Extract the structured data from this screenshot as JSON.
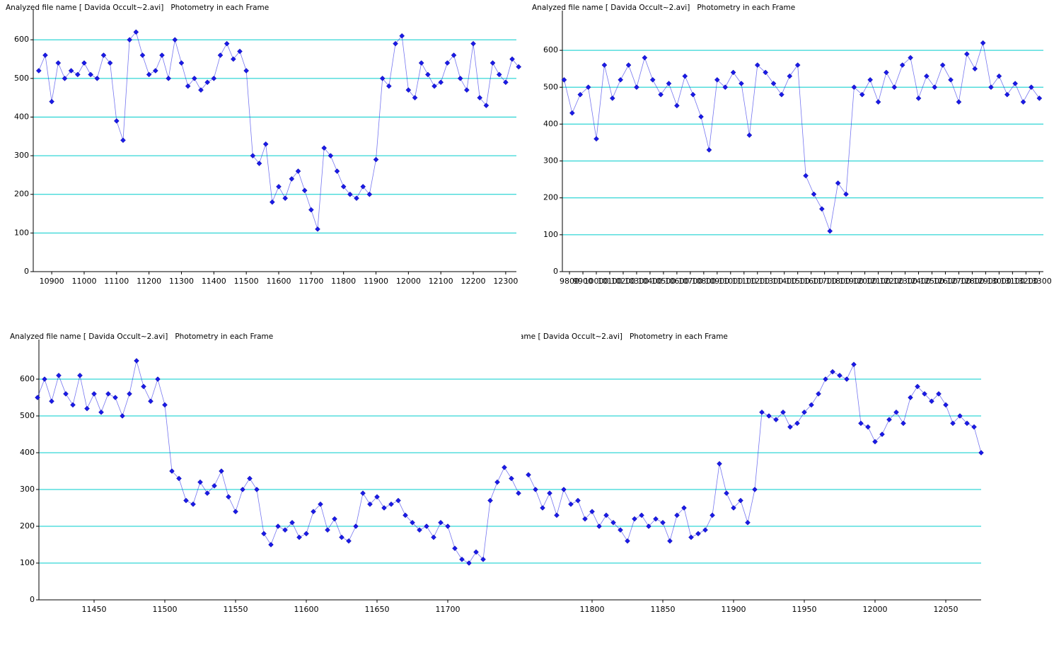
{
  "chart_data": [
    {
      "type": "line",
      "title": "Analyzed file name [ Davida Occult~2.avi]   Photometry in each Frame",
      "xlim": [
        10843,
        12333
      ],
      "ylim": [
        0,
        670
      ],
      "xticks": [
        10900,
        11000,
        11100,
        11200,
        11300,
        11400,
        11500,
        11600,
        11700,
        11800,
        11900,
        12000,
        12100,
        12200,
        12300
      ],
      "yticks": [
        0,
        100,
        200,
        300,
        400,
        500,
        600
      ],
      "grid": true,
      "grid_color": "#00cccc",
      "ytick_labels": true,
      "x": [
        10860,
        10880,
        10900,
        10920,
        10940,
        10960,
        10980,
        11000,
        11020,
        11040,
        11060,
        11080,
        11100,
        11120,
        11140,
        11160,
        11180,
        11200,
        11220,
        11240,
        11260,
        11280,
        11300,
        11320,
        11340,
        11360,
        11380,
        11400,
        11420,
        11440,
        11460,
        11480,
        11500,
        11520,
        11540,
        11560,
        11580,
        11600,
        11620,
        11640,
        11660,
        11680,
        11700,
        11720,
        11740,
        11760,
        11780,
        11800,
        11820,
        11840,
        11860,
        11880,
        11900,
        11920,
        11940,
        11960,
        11980,
        12000,
        12020,
        12040,
        12060,
        12080,
        12100,
        12120,
        12140,
        12160,
        12180,
        12200,
        12220,
        12240,
        12260,
        12280,
        12300,
        12320,
        12340
      ],
      "series": [
        {
          "name": "Photometry",
          "color": "#1a1ae6",
          "values": [
            520,
            560,
            440,
            540,
            500,
            520,
            510,
            540,
            510,
            500,
            560,
            540,
            390,
            340,
            600,
            620,
            560,
            510,
            520,
            560,
            500,
            600,
            540,
            480,
            500,
            470,
            490,
            500,
            560,
            590,
            550,
            570,
            520,
            300,
            280,
            330,
            180,
            220,
            190,
            240,
            260,
            210,
            160,
            110,
            320,
            300,
            260,
            220,
            200,
            190,
            220,
            200,
            290,
            500,
            480,
            590,
            610,
            470,
            450,
            540,
            510,
            480,
            490,
            540,
            560,
            500,
            470,
            590,
            450,
            430,
            540,
            510,
            490,
            550,
            530
          ]
        }
      ]
    },
    {
      "type": "line",
      "title": "Analyzed file name [ Davida Occult~2.avi]   Photometry in each Frame",
      "xlim": [
        9747,
        13330
      ],
      "ylim": [
        0,
        700
      ],
      "xticks": [
        9800,
        9900,
        10000,
        10100,
        10200,
        10300,
        10400,
        10500,
        10600,
        10700,
        10800,
        10900,
        11000,
        11100,
        11200,
        11300,
        11400,
        11500,
        11600,
        11700,
        11800,
        11900,
        12000,
        12100,
        12200,
        12300,
        12400,
        12500,
        12600,
        12700,
        12800,
        12900,
        13000,
        13100,
        13200,
        13300
      ],
      "yticks": [
        0,
        100,
        200,
        300,
        400,
        500,
        600
      ],
      "grid": true,
      "grid_color": "#00cccc",
      "ytick_labels": true,
      "x": [
        9760,
        9820,
        9880,
        9940,
        10000,
        10060,
        10120,
        10180,
        10240,
        10300,
        10360,
        10420,
        10480,
        10540,
        10600,
        10660,
        10720,
        10780,
        10840,
        10900,
        10960,
        11020,
        11080,
        11140,
        11200,
        11260,
        11320,
        11380,
        11440,
        11500,
        11560,
        11620,
        11680,
        11740,
        11800,
        11860,
        11920,
        11980,
        12040,
        12100,
        12160,
        12220,
        12280,
        12340,
        12400,
        12460,
        12520,
        12580,
        12640,
        12700,
        12760,
        12820,
        12880,
        12940,
        13000,
        13060,
        13120,
        13180,
        13240,
        13300
      ],
      "series": [
        {
          "name": "Photometry",
          "color": "#1a1ae6",
          "values": [
            520,
            430,
            480,
            500,
            360,
            560,
            470,
            520,
            560,
            500,
            580,
            520,
            480,
            510,
            450,
            530,
            480,
            420,
            330,
            520,
            500,
            540,
            510,
            370,
            560,
            540,
            510,
            480,
            530,
            560,
            260,
            210,
            170,
            110,
            240,
            210,
            500,
            480,
            520,
            460,
            540,
            500,
            560,
            580,
            470,
            530,
            500,
            560,
            520,
            460,
            590,
            550,
            620,
            500,
            530,
            480,
            510,
            460,
            500,
            470
          ]
        }
      ]
    },
    {
      "type": "line",
      "title": "Analyzed file name [ Davida Occult~2.avi]   Photometry in each Frame",
      "xlim": [
        11411,
        11752
      ],
      "ylim": [
        0,
        700
      ],
      "xticks": [
        11450,
        11500,
        11550,
        11600,
        11650,
        11700
      ],
      "yticks": [
        0,
        100,
        200,
        300,
        400,
        500,
        600
      ],
      "grid": true,
      "grid_color": "#00cccc",
      "ytick_labels": true,
      "x": [
        11410,
        11415,
        11420,
        11425,
        11430,
        11435,
        11440,
        11445,
        11450,
        11455,
        11460,
        11465,
        11470,
        11475,
        11480,
        11485,
        11490,
        11495,
        11500,
        11505,
        11510,
        11515,
        11520,
        11525,
        11530,
        11535,
        11540,
        11545,
        11550,
        11555,
        11560,
        11565,
        11570,
        11575,
        11580,
        11585,
        11590,
        11595,
        11600,
        11605,
        11610,
        11615,
        11620,
        11625,
        11630,
        11635,
        11640,
        11645,
        11650,
        11655,
        11660,
        11665,
        11670,
        11675,
        11680,
        11685,
        11690,
        11695,
        11700,
        11705,
        11710,
        11715,
        11720,
        11725,
        11730,
        11735,
        11740,
        11745,
        11750
      ],
      "series": [
        {
          "name": "Photometry",
          "color": "#1a1ae6",
          "values": [
            550,
            600,
            540,
            610,
            560,
            530,
            610,
            520,
            560,
            510,
            560,
            550,
            500,
            560,
            650,
            580,
            540,
            600,
            530,
            350,
            330,
            270,
            260,
            320,
            290,
            310,
            350,
            280,
            240,
            300,
            330,
            300,
            180,
            150,
            200,
            190,
            210,
            170,
            180,
            240,
            260,
            190,
            220,
            170,
            160,
            200,
            290,
            260,
            280,
            250,
            260,
            270,
            230,
            210,
            190,
            200,
            170,
            210,
            200,
            140,
            110,
            100,
            130,
            110,
            270,
            320,
            360,
            330,
            290
          ]
        }
      ]
    },
    {
      "type": "line",
      "title": "ame [ Davida Occult~2.avi]   Photometry in each Frame",
      "xlim": [
        11750,
        12075
      ],
      "ylim": [
        0,
        700
      ],
      "xticks": [
        11800,
        11850,
        11900,
        11950,
        12000,
        12050
      ],
      "yticks": [
        0,
        100,
        200,
        300,
        400,
        500,
        600
      ],
      "grid": true,
      "grid_color": "#00cccc",
      "ytick_labels": false,
      "x": [
        11755,
        11760,
        11765,
        11770,
        11775,
        11780,
        11785,
        11790,
        11795,
        11800,
        11805,
        11810,
        11815,
        11820,
        11825,
        11830,
        11835,
        11840,
        11845,
        11850,
        11855,
        11860,
        11865,
        11870,
        11875,
        11880,
        11885,
        11890,
        11895,
        11900,
        11905,
        11910,
        11915,
        11920,
        11925,
        11930,
        11935,
        11940,
        11945,
        11950,
        11955,
        11960,
        11965,
        11970,
        11975,
        11980,
        11985,
        11990,
        11995,
        12000,
        12005,
        12010,
        12015,
        12020,
        12025,
        12030,
        12035,
        12040,
        12045,
        12050,
        12055,
        12060,
        12065,
        12070,
        12075
      ],
      "series": [
        {
          "name": "Photometry",
          "color": "#1a1ae6",
          "values": [
            340,
            300,
            250,
            290,
            230,
            300,
            260,
            270,
            220,
            240,
            200,
            230,
            210,
            190,
            160,
            220,
            230,
            200,
            220,
            210,
            160,
            230,
            250,
            170,
            180,
            190,
            230,
            370,
            290,
            250,
            270,
            210,
            300,
            510,
            500,
            490,
            510,
            470,
            480,
            510,
            530,
            560,
            600,
            620,
            610,
            600,
            640,
            480,
            470,
            430,
            450,
            490,
            510,
            480,
            550,
            580,
            560,
            540,
            560,
            530,
            480,
            500,
            480,
            470,
            400
          ]
        }
      ]
    }
  ]
}
